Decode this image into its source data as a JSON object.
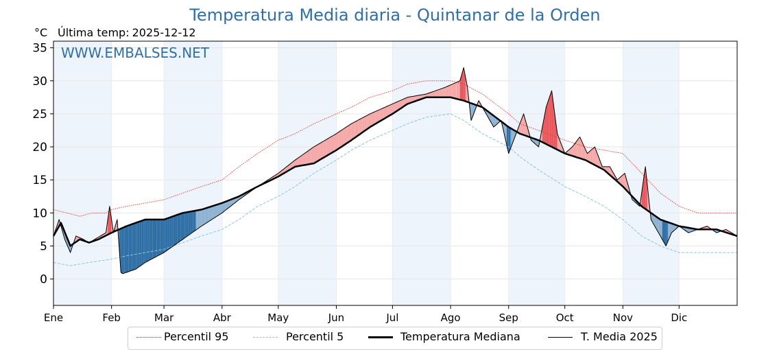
{
  "title": "Temperatura Media diaria - Quintanar de la Orden",
  "unit_label": "°C",
  "last_temp_label": "Última temp:",
  "last_temp_date": "2025-12-12",
  "watermark": "WWW.EMBALSES.NET",
  "legend": {
    "p95": "Percentil 95",
    "p5": "Percentil 5",
    "median": "Temperatura Mediana",
    "media2025": "T. Media 2025"
  },
  "colors": {
    "title": "#2f6fa5",
    "p95": "#e03030",
    "p5": "#8cc4dd",
    "median": "#000000",
    "above_fill": "#e8595d",
    "above_fill_light": "#f4a9a8",
    "below_fill": "#2f6fa5",
    "below_fill_light": "#8eb2d1",
    "month_shade": "#eef4fb"
  },
  "chart_data": {
    "type": "line",
    "title": "Temperatura Media diaria - Quintanar de la Orden",
    "xlabel": "",
    "ylabel": "°C",
    "ylim": [
      -4,
      36
    ],
    "xlim": [
      1,
      366
    ],
    "yticks": [
      0,
      5,
      10,
      15,
      20,
      25,
      30,
      35
    ],
    "month_ticks": [
      {
        "label": "Ene",
        "day": 1
      },
      {
        "label": "Feb",
        "day": 32
      },
      {
        "label": "Mar",
        "day": 60
      },
      {
        "label": "Abr",
        "day": 91
      },
      {
        "label": "May",
        "day": 121
      },
      {
        "label": "Jun",
        "day": 152
      },
      {
        "label": "Jul",
        "day": 182
      },
      {
        "label": "Ago",
        "day": 213
      },
      {
        "label": "Sep",
        "day": 244
      },
      {
        "label": "Oct",
        "day": 274
      },
      {
        "label": "Nov",
        "day": 305
      },
      {
        "label": "Dic",
        "day": 335
      }
    ],
    "shaded_months": [
      [
        1,
        32
      ],
      [
        60,
        91
      ],
      [
        121,
        152
      ],
      [
        182,
        213
      ],
      [
        244,
        274
      ],
      [
        305,
        335
      ]
    ],
    "series": [
      {
        "name": "Percentil 95",
        "style": "dotted-red",
        "points": [
          [
            1,
            10.5
          ],
          [
            8,
            10
          ],
          [
            15,
            9.5
          ],
          [
            22,
            10
          ],
          [
            29,
            10
          ],
          [
            32,
            10.5
          ],
          [
            40,
            11
          ],
          [
            50,
            11.5
          ],
          [
            60,
            12
          ],
          [
            70,
            13
          ],
          [
            80,
            14
          ],
          [
            91,
            15
          ],
          [
            100,
            17
          ],
          [
            110,
            19
          ],
          [
            121,
            21
          ],
          [
            130,
            22
          ],
          [
            140,
            23.5
          ],
          [
            152,
            25
          ],
          [
            160,
            26
          ],
          [
            170,
            27.5
          ],
          [
            182,
            28.5
          ],
          [
            190,
            29.5
          ],
          [
            200,
            30
          ],
          [
            213,
            30
          ],
          [
            220,
            29.5
          ],
          [
            230,
            28
          ],
          [
            244,
            25
          ],
          [
            250,
            23.5
          ],
          [
            260,
            22.5
          ],
          [
            274,
            21
          ],
          [
            285,
            20
          ],
          [
            295,
            19.5
          ],
          [
            305,
            19
          ],
          [
            315,
            16
          ],
          [
            325,
            13
          ],
          [
            335,
            11
          ],
          [
            345,
            10
          ],
          [
            355,
            10
          ],
          [
            366,
            10
          ]
        ]
      },
      {
        "name": "Percentil 5",
        "style": "dashed-lightblue",
        "points": [
          [
            1,
            2.5
          ],
          [
            10,
            2
          ],
          [
            20,
            2.5
          ],
          [
            32,
            3
          ],
          [
            40,
            3.5
          ],
          [
            50,
            4
          ],
          [
            60,
            4.5
          ],
          [
            70,
            5.5
          ],
          [
            80,
            6.5
          ],
          [
            91,
            7.5
          ],
          [
            100,
            9
          ],
          [
            110,
            11
          ],
          [
            121,
            12.5
          ],
          [
            130,
            14
          ],
          [
            140,
            16
          ],
          [
            152,
            18
          ],
          [
            160,
            19.5
          ],
          [
            170,
            21
          ],
          [
            182,
            22.5
          ],
          [
            190,
            23.5
          ],
          [
            200,
            24.5
          ],
          [
            213,
            25
          ],
          [
            220,
            24
          ],
          [
            230,
            22
          ],
          [
            244,
            20
          ],
          [
            250,
            18.5
          ],
          [
            260,
            16.5
          ],
          [
            274,
            14
          ],
          [
            285,
            12.5
          ],
          [
            295,
            11
          ],
          [
            305,
            9
          ],
          [
            315,
            6.5
          ],
          [
            325,
            5
          ],
          [
            335,
            4
          ],
          [
            345,
            4
          ],
          [
            355,
            4
          ],
          [
            366,
            4
          ]
        ]
      },
      {
        "name": "Temperatura Mediana",
        "style": "thick-black",
        "points": [
          [
            1,
            6.5
          ],
          [
            5,
            8.5
          ],
          [
            10,
            5
          ],
          [
            15,
            6
          ],
          [
            20,
            5.5
          ],
          [
            25,
            6
          ],
          [
            32,
            7
          ],
          [
            40,
            8
          ],
          [
            50,
            9
          ],
          [
            60,
            9
          ],
          [
            70,
            10
          ],
          [
            80,
            10.5
          ],
          [
            91,
            11.5
          ],
          [
            100,
            12.5
          ],
          [
            110,
            14
          ],
          [
            121,
            15.5
          ],
          [
            130,
            17
          ],
          [
            140,
            17.5
          ],
          [
            152,
            19.5
          ],
          [
            160,
            21
          ],
          [
            170,
            23
          ],
          [
            182,
            25
          ],
          [
            190,
            26.5
          ],
          [
            200,
            27.5
          ],
          [
            213,
            27.5
          ],
          [
            220,
            27
          ],
          [
            230,
            26
          ],
          [
            244,
            23
          ],
          [
            250,
            22
          ],
          [
            260,
            21
          ],
          [
            274,
            19
          ],
          [
            285,
            18
          ],
          [
            295,
            16.5
          ],
          [
            305,
            14
          ],
          [
            315,
            11
          ],
          [
            325,
            9
          ],
          [
            335,
            8
          ],
          [
            345,
            7.5
          ],
          [
            355,
            7.5
          ],
          [
            366,
            6.5
          ]
        ]
      },
      {
        "name": "T. Media 2025",
        "style": "thin-black",
        "points": [
          [
            1,
            6.5
          ],
          [
            4,
            9
          ],
          [
            7,
            6
          ],
          [
            10,
            4
          ],
          [
            13,
            6.5
          ],
          [
            17,
            6
          ],
          [
            20,
            5.5
          ],
          [
            23,
            6
          ],
          [
            26,
            6.5
          ],
          [
            29,
            7
          ],
          [
            31,
            11
          ],
          [
            33,
            7
          ],
          [
            35,
            9
          ],
          [
            37,
            1
          ],
          [
            38,
            0.8
          ],
          [
            40,
            1
          ],
          [
            45,
            1.5
          ],
          [
            50,
            2.5
          ],
          [
            60,
            4
          ],
          [
            70,
            6
          ],
          [
            80,
            8
          ],
          [
            91,
            10
          ],
          [
            100,
            12
          ],
          [
            110,
            14
          ],
          [
            121,
            16
          ],
          [
            130,
            18
          ],
          [
            140,
            20
          ],
          [
            152,
            22
          ],
          [
            160,
            23.5
          ],
          [
            170,
            25
          ],
          [
            182,
            26.5
          ],
          [
            190,
            27.5
          ],
          [
            200,
            28
          ],
          [
            210,
            29
          ],
          [
            218,
            30
          ],
          [
            220,
            32
          ],
          [
            222,
            29
          ],
          [
            224,
            24
          ],
          [
            228,
            27
          ],
          [
            232,
            25
          ],
          [
            236,
            23
          ],
          [
            240,
            24
          ],
          [
            244,
            19
          ],
          [
            248,
            22
          ],
          [
            252,
            25
          ],
          [
            256,
            21
          ],
          [
            260,
            20
          ],
          [
            264,
            26
          ],
          [
            267,
            28.5
          ],
          [
            270,
            22
          ],
          [
            274,
            19
          ],
          [
            278,
            20
          ],
          [
            282,
            21.5
          ],
          [
            286,
            19
          ],
          [
            290,
            20
          ],
          [
            294,
            17
          ],
          [
            298,
            17
          ],
          [
            302,
            15
          ],
          [
            306,
            16
          ],
          [
            310,
            12
          ],
          [
            314,
            11
          ],
          [
            317,
            17
          ],
          [
            320,
            9
          ],
          [
            324,
            7
          ],
          [
            328,
            5
          ],
          [
            331,
            7
          ],
          [
            335,
            8
          ],
          [
            340,
            7
          ],
          [
            345,
            7.5
          ],
          [
            350,
            8
          ],
          [
            355,
            7
          ],
          [
            360,
            7.5
          ],
          [
            366,
            6.5
          ]
        ]
      }
    ],
    "above_median_fill": "red",
    "below_median_fill": "blue"
  }
}
